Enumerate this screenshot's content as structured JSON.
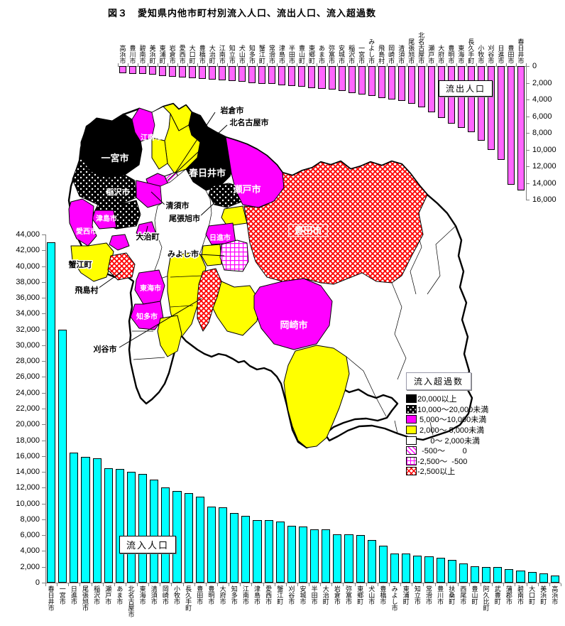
{
  "title": "図３　愛知県内他市町村別流入人口、流出人口、流入超過数",
  "chart_data": [
    {
      "type": "bar",
      "name": "outflow-from-nagoya",
      "title": "流出人口",
      "orientation": "columns-hanging-down-from-top",
      "bar_color": "#FF66FF",
      "ylabel": "",
      "xlabel": "",
      "ylim": [
        0,
        16000
      ],
      "axis_side": "right",
      "yticks": [
        "0",
        "2,000",
        "4,000",
        "6,000",
        "8,000",
        "10,000",
        "12,000",
        "14,000",
        "16,000"
      ],
      "categories": [
        "高浜市",
        "豊川市",
        "碧南市",
        "美浜町",
        "東浦町",
        "岩倉市",
        "愛西市",
        "大口町",
        "豊橋市",
        "大治町",
        "江南市",
        "知立市",
        "犬山市",
        "知多市",
        "蟹江町",
        "常滑市",
        "津島市",
        "半田市",
        "豊山町",
        "東郷町",
        "あま市",
        "弥富市",
        "安城市",
        "稲沢市",
        "一宮市",
        "みよし市",
        "飛島村",
        "岡崎市",
        "清須市",
        "尾張旭市",
        "北名古屋市",
        "瀬戸市",
        "大府市",
        "豊明市",
        "東海市",
        "長久手町",
        "小牧市",
        "刈谷市",
        "日進市",
        "豊田市",
        "春日井市"
      ],
      "values": [
        850,
        900,
        950,
        1000,
        1200,
        1300,
        1400,
        1450,
        1550,
        1600,
        1700,
        1800,
        1900,
        2000,
        2100,
        2150,
        2300,
        2400,
        2450,
        2600,
        2700,
        2800,
        3000,
        3200,
        3400,
        3600,
        3800,
        4000,
        4200,
        4500,
        4900,
        5500,
        6200,
        6900,
        7400,
        7900,
        8900,
        10000,
        11200,
        14200,
        14900
      ]
    },
    {
      "type": "bar",
      "name": "inflow-to-nagoya",
      "title": "流入人口",
      "orientation": "columns-rising-from-bottom",
      "bar_color": "#00FFFF",
      "ylabel": "",
      "xlabel": "",
      "ylim": [
        0,
        44000
      ],
      "axis_side": "left",
      "yticks": [
        "0",
        "2,000",
        "4,000",
        "6,000",
        "8,000",
        "10,000",
        "12,000",
        "14,000",
        "16,000",
        "18,000",
        "20,000",
        "22,000",
        "24,000",
        "26,000",
        "28,000",
        "30,000",
        "32,000",
        "34,000",
        "36,000",
        "38,000",
        "40,000",
        "42,000",
        "44,000"
      ],
      "categories": [
        "春日井市",
        "一宮市",
        "日進市",
        "尾張旭市",
        "稲沢市",
        "瀬戸市",
        "あま市",
        "北名古屋市",
        "東海市",
        "清須市",
        "岡崎市",
        "小牧市",
        "長久手町",
        "豊田市",
        "豊明市",
        "大府市",
        "知多市",
        "江南市",
        "津島市",
        "愛西市",
        "蟹江町",
        "刈谷市",
        "安城市",
        "半田市",
        "大治町",
        "岩倉市",
        "弥富市",
        "東郷町",
        "犬山市",
        "豊橋市",
        "みよし市",
        "東浦町",
        "知立市",
        "常滑市",
        "豊川市",
        "扶桑町",
        "西尾市",
        "豊山町",
        "阿久比町",
        "武豊町",
        "蒲郡市",
        "碧南市",
        "大口町",
        "美浜町",
        "高浜市"
      ],
      "values": [
        43000,
        32000,
        16400,
        15900,
        15700,
        14500,
        14400,
        14000,
        13700,
        13000,
        12000,
        11600,
        11300,
        10900,
        9600,
        9500,
        8800,
        8400,
        7900,
        7900,
        7700,
        7200,
        7100,
        6700,
        6700,
        6100,
        6100,
        6000,
        5400,
        4700,
        3700,
        3650,
        3450,
        3300,
        3100,
        2900,
        2400,
        2100,
        2000,
        1950,
        1700,
        1500,
        1350,
        1150,
        900
      ]
    }
  ],
  "legend": {
    "title": "流入超過数",
    "items": [
      {
        "label": "20,000以上",
        "swatch": "black"
      },
      {
        "label": "10,000～20,000未満",
        "swatch": "dots"
      },
      {
        "label": " 5,000～10,000未満",
        "swatch": "magenta"
      },
      {
        "label": " 2,000～ 5,000未満",
        "swatch": "yellow"
      },
      {
        "label": "      0～ 2,000未満",
        "swatch": "white"
      },
      {
        "label": "  -500～        0",
        "swatch": "diag"
      },
      {
        "label": "-2,500～  -500",
        "swatch": "grid"
      },
      {
        "label": "-2,500以上",
        "swatch": "redcross"
      }
    ]
  },
  "map": {
    "labels": [
      {
        "text": "一宮市"
      },
      {
        "text": "江南市"
      },
      {
        "text": "岩倉市"
      },
      {
        "text": "北名古屋市"
      },
      {
        "text": "春日井市"
      },
      {
        "text": "稲沢市"
      },
      {
        "text": "清須市"
      },
      {
        "text": "尾張旭市"
      },
      {
        "text": "瀬戸市"
      },
      {
        "text": "津島市"
      },
      {
        "text": "愛西市"
      },
      {
        "text": "大治町"
      },
      {
        "text": "蟹江町"
      },
      {
        "text": "みよし市"
      },
      {
        "text": "日進市"
      },
      {
        "text": "飛島村"
      },
      {
        "text": "東海市"
      },
      {
        "text": "知多市"
      },
      {
        "text": "刈谷市"
      },
      {
        "text": "岡崎市"
      },
      {
        "text": "豊田市"
      }
    ]
  },
  "colors": {
    "outflow_bar": "#FF66FF",
    "inflow_bar": "#00FFFF",
    "map_magenta": "#FF00FF",
    "map_yellow": "#FFFF00",
    "map_black": "#000000",
    "map_red": "#FF0000",
    "axis_gray": "#808080"
  }
}
